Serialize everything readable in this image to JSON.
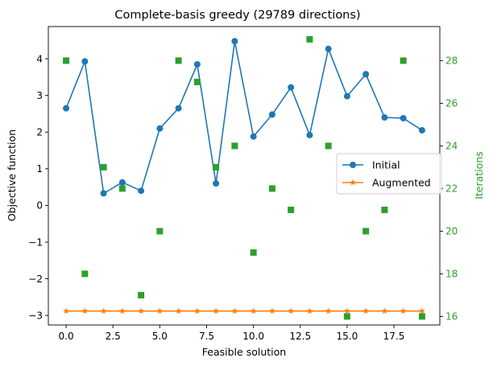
{
  "chart_data": {
    "type": "line",
    "title": "Complete-basis greedy (29789 directions)",
    "xlabel": "Feasible solution",
    "ylabel": "Objective function",
    "y2label": "Iterations",
    "xlim": [
      -0.95,
      19.95
    ],
    "ylim": [
      -3.26,
      4.88
    ],
    "y2lim": [
      15.6,
      29.6
    ],
    "xticks": [
      0.0,
      2.5,
      5.0,
      7.5,
      10.0,
      12.5,
      15.0,
      17.5
    ],
    "xtick_labels": [
      "0.0",
      "2.5",
      "5.0",
      "7.5",
      "10.0",
      "12.5",
      "15.0",
      "17.5"
    ],
    "yticks": [
      -3,
      -2,
      -1,
      0,
      1,
      2,
      3,
      4
    ],
    "ytick_labels": [
      "−3",
      "−2",
      "−1",
      "0",
      "1",
      "2",
      "3",
      "4"
    ],
    "y2ticks": [
      16,
      18,
      20,
      22,
      24,
      26,
      28
    ],
    "y2tick_labels": [
      "16",
      "18",
      "20",
      "22",
      "24",
      "26",
      "28"
    ],
    "x": [
      0,
      1,
      2,
      3,
      4,
      5,
      6,
      7,
      8,
      9,
      10,
      11,
      12,
      13,
      14,
      15,
      16,
      17,
      18,
      19
    ],
    "series": [
      {
        "name": "Initial",
        "axis": "left",
        "color": "#1f77b4",
        "marker": "circle",
        "line": true,
        "values": [
          2.65,
          3.93,
          0.33,
          0.63,
          0.4,
          2.1,
          2.65,
          3.85,
          0.6,
          4.48,
          1.88,
          2.48,
          3.22,
          1.92,
          4.27,
          2.98,
          3.58,
          2.4,
          2.38,
          2.05
        ]
      },
      {
        "name": "Augmented",
        "axis": "left",
        "color": "#ff7f0e",
        "marker": "star",
        "line": true,
        "values": [
          -2.88,
          -2.88,
          -2.88,
          -2.88,
          -2.88,
          -2.88,
          -2.88,
          -2.88,
          -2.88,
          -2.88,
          -2.88,
          -2.88,
          -2.88,
          -2.88,
          -2.88,
          -2.88,
          -2.88,
          -2.88,
          -2.88,
          -2.88
        ]
      },
      {
        "axis": "right",
        "color": "#2ca02c",
        "marker": "square",
        "line": false,
        "values": [
          28,
          18,
          23,
          22,
          17,
          20,
          28,
          27,
          23,
          24,
          19,
          22,
          21,
          29,
          24,
          16,
          20,
          21,
          28,
          16
        ]
      }
    ],
    "legend": "center-right",
    "grid": false
  }
}
